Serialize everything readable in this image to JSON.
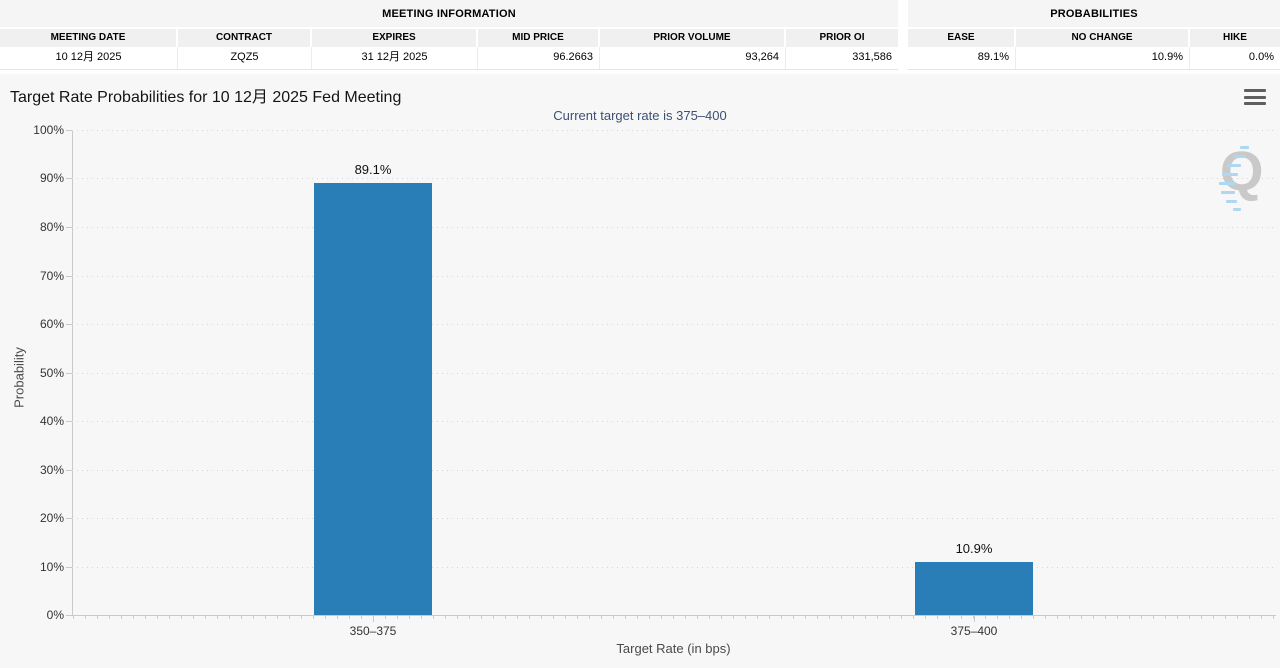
{
  "meeting_info": {
    "title": "MEETING INFORMATION",
    "columns": [
      "MEETING DATE",
      "CONTRACT",
      "EXPIRES",
      "MID PRICE",
      "PRIOR VOLUME",
      "PRIOR OI"
    ],
    "values": [
      "10 12月 2025",
      "ZQZ5",
      "31 12月 2025",
      "96.2663",
      "93,264",
      "331,586"
    ]
  },
  "probabilities": {
    "title": "PROBABILITIES",
    "columns": [
      "EASE",
      "NO CHANGE",
      "HIKE"
    ],
    "values": [
      "89.1%",
      "10.9%",
      "0.0%"
    ]
  },
  "chart_data": {
    "type": "bar",
    "title": "Target Rate Probabilities for 10 12月 2025 Fed Meeting",
    "subtitle": "Current target rate is 375–400",
    "categories": [
      "350–375",
      "375–400"
    ],
    "values": [
      89.1,
      10.9
    ],
    "data_labels": [
      "89.1%",
      "10.9%"
    ],
    "xlabel": "Target Rate (in bps)",
    "ylabel": "Probability",
    "ylim": [
      0,
      100
    ],
    "yticks": [
      0,
      10,
      20,
      30,
      40,
      50,
      60,
      70,
      80,
      90,
      100
    ],
    "ytick_suffix": "%",
    "grid": "dotted-horizontal",
    "legend": "none",
    "bar_color": "#2a7eb7",
    "watermark_letter": "Q"
  }
}
